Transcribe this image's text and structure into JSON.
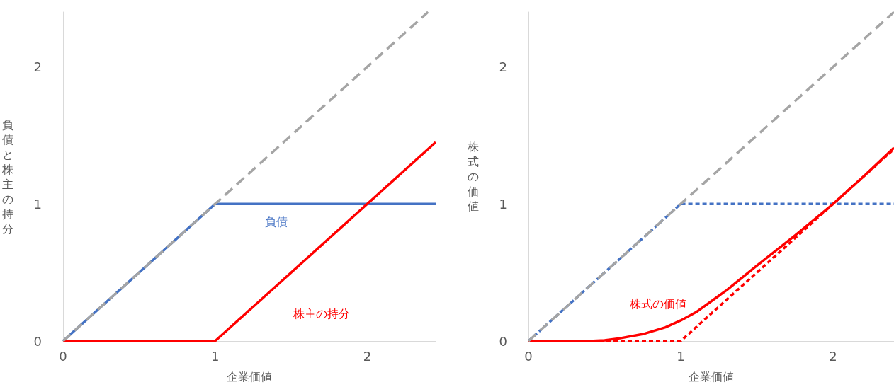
{
  "chart_data": [
    {
      "type": "line",
      "xlabel": "企業価値",
      "ylabel": "負債と株主の持分",
      "xlim": [
        0,
        2.45
      ],
      "ylim": [
        0,
        2.4
      ],
      "xticks": [
        0,
        1,
        2
      ],
      "yticks": [
        0,
        1,
        2
      ],
      "grid": "y",
      "legend": false,
      "marker": "none",
      "series": [
        {
          "color": "#a5a5a5",
          "line_style": "dashed",
          "x": [
            0,
            2.4
          ],
          "values": [
            0,
            2.4
          ]
        },
        {
          "name": "負債",
          "color": "#4472c4",
          "line_style": "solid",
          "x": [
            0,
            1,
            2.45
          ],
          "values": [
            0,
            1,
            1
          ]
        },
        {
          "name": "株主の持分",
          "color": "#ff0000",
          "line_style": "solid",
          "x": [
            0,
            1,
            2.45
          ],
          "values": [
            0,
            0,
            1.45
          ]
        }
      ]
    },
    {
      "type": "line",
      "xlabel": "企業価値",
      "ylabel": "株式の価値",
      "xlim": [
        0,
        2.4
      ],
      "ylim": [
        0,
        2.4
      ],
      "xticks": [
        0,
        1,
        2
      ],
      "yticks": [
        0,
        1,
        2
      ],
      "grid": "y",
      "legend": false,
      "marker": "none",
      "series": [
        {
          "color": "#a5a5a5",
          "line_style": "dashed",
          "x": [
            0,
            2.4
          ],
          "values": [
            0,
            2.4
          ]
        },
        {
          "color": "#4472c4",
          "line_style": "dashed",
          "x": [
            0,
            1,
            2.4
          ],
          "values": [
            0,
            1,
            1
          ]
        },
        {
          "color": "#ff0000",
          "line_style": "dashed",
          "x": [
            0,
            1,
            2.4
          ],
          "values": [
            0,
            0,
            1.4
          ]
        },
        {
          "name": "株式の価値",
          "color": "#ff0000",
          "line_style": "solid",
          "x": [
            0,
            0.4,
            0.5,
            0.6,
            0.75,
            0.9,
            1,
            1.1,
            1.3,
            1.5,
            1.75,
            2,
            2.2,
            2.4
          ],
          "values": [
            0,
            0,
            0.005,
            0.02,
            0.05,
            0.1,
            0.15,
            0.21,
            0.37,
            0.55,
            0.77,
            1,
            1.2,
            1.41
          ]
        }
      ]
    }
  ]
}
